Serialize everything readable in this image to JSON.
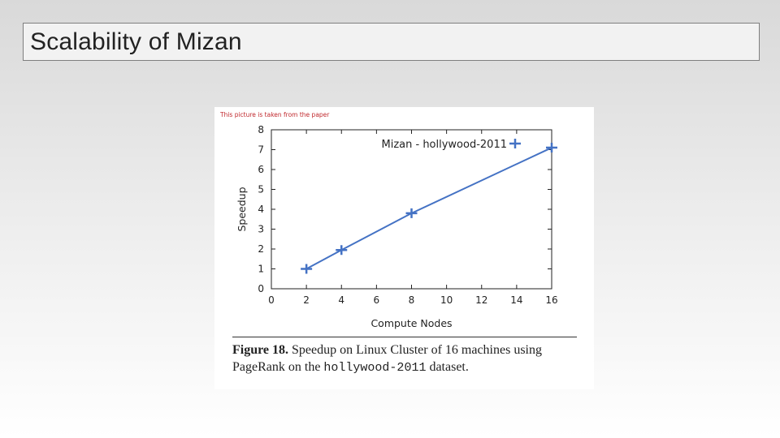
{
  "slide": {
    "title": "Scalability of Mizan"
  },
  "figure": {
    "note": "This picture is taken from the paper",
    "caption_label": "Figure 18.",
    "caption_text_1": "Speedup on Linux Cluster of 16 machines using PageRank on the ",
    "caption_mono": "hollywood-2011",
    "caption_text_2": " dataset."
  },
  "colors": {
    "series": "#4472c4",
    "axis": "#222222"
  },
  "chart_data": {
    "type": "line",
    "xlabel": "Compute Nodes",
    "ylabel": "Speedup",
    "xlim": [
      0,
      16
    ],
    "ylim": [
      0,
      8
    ],
    "xticks": [
      0,
      2,
      4,
      6,
      8,
      10,
      12,
      14,
      16
    ],
    "yticks": [
      0,
      1,
      2,
      3,
      4,
      5,
      6,
      7,
      8
    ],
    "grid": false,
    "legend_position": "top-right",
    "series": [
      {
        "name": "Mizan - hollywood-2011",
        "marker": "plus",
        "x": [
          2,
          4,
          8,
          16
        ],
        "y": [
          1.0,
          1.95,
          3.8,
          7.1
        ]
      }
    ]
  }
}
